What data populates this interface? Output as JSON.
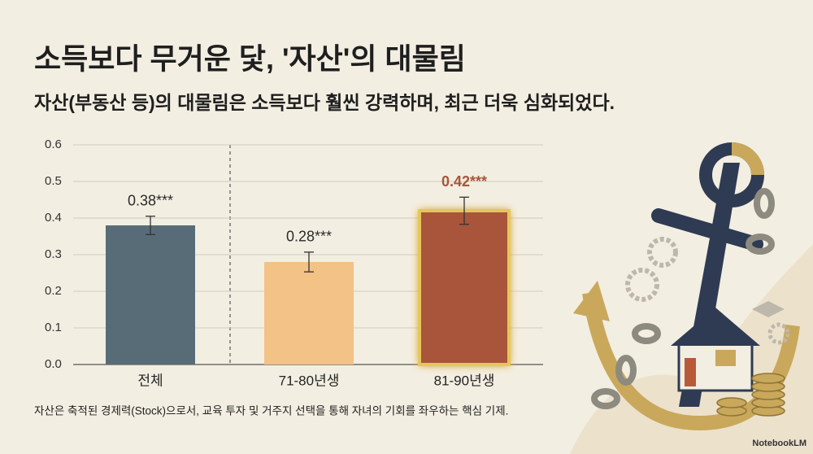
{
  "chart_data": {
    "type": "bar",
    "title": "소득보다 무거운 닻, '자산'의 대물림",
    "subtitle": "자산(부동산 등)의 대물림은 소득보다 훨씬 강력하며, 최근 더욱 심화되었다.",
    "categories": [
      "전체",
      "71-80년생",
      "81-90년생"
    ],
    "values": [
      0.38,
      0.28,
      0.42
    ],
    "value_labels": [
      "0.38***",
      "0.28***",
      "0.42***"
    ],
    "errors": [
      0.025,
      0.027,
      0.037
    ],
    "colors": [
      "#586c78",
      "#f2c286",
      "#a8553a"
    ],
    "highlight": 2,
    "ylim": [
      0,
      0.6
    ],
    "yticks": [
      {
        "value": 0,
        "label": "0.0"
      },
      0.1,
      0.2,
      0.3,
      0.4,
      0.5,
      0.6
    ],
    "grid": true,
    "note": "자산은 축적된 경제력(Stock)으로서, 교육 투자 및 거주지 선택을 통해 자녀의 기회를 좌우하는 핵심 기제.",
    "watermark": "NotebookLM"
  }
}
